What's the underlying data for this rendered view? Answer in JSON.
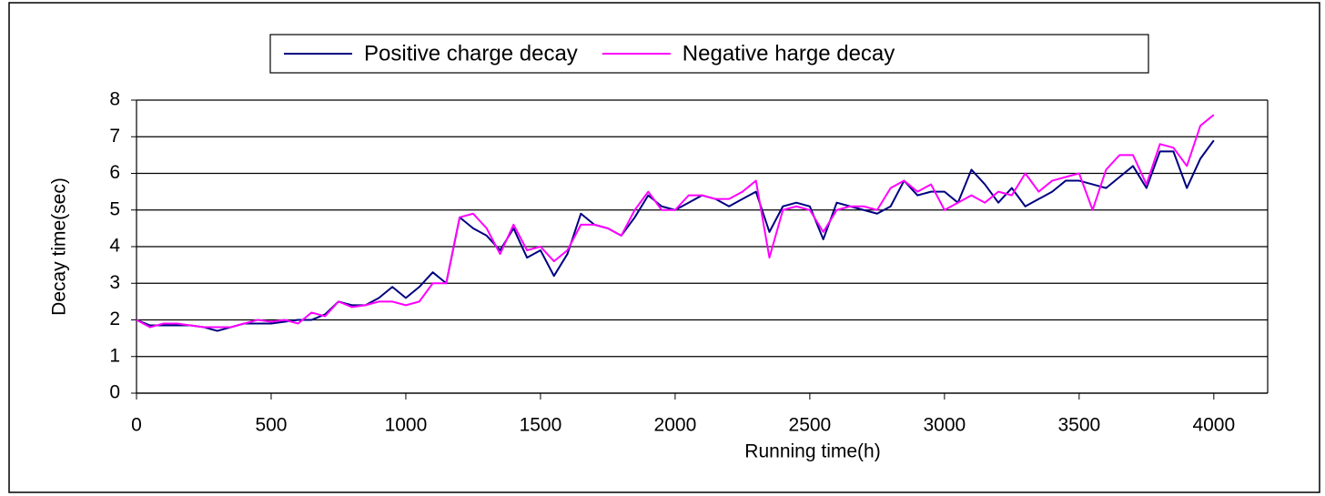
{
  "chart_data": {
    "type": "line",
    "xlabel": "Running time(h)",
    "ylabel": "Decay time(sec)",
    "x": [
      0,
      50,
      100,
      150,
      200,
      250,
      300,
      350,
      400,
      450,
      500,
      550,
      600,
      650,
      700,
      750,
      800,
      850,
      900,
      950,
      1000,
      1050,
      1100,
      1150,
      1200,
      1250,
      1300,
      1350,
      1400,
      1450,
      1500,
      1550,
      1600,
      1650,
      1700,
      1750,
      1800,
      1850,
      1900,
      1950,
      2000,
      2050,
      2100,
      2150,
      2200,
      2250,
      2300,
      2350,
      2400,
      2450,
      2500,
      2550,
      2600,
      2650,
      2700,
      2750,
      2800,
      2850,
      2900,
      2950,
      3000,
      3050,
      3100,
      3150,
      3200,
      3250,
      3300,
      3350,
      3400,
      3450,
      3500,
      3550,
      3600,
      3650,
      3700,
      3750,
      3800,
      3850,
      3900,
      3950,
      4000
    ],
    "series": [
      {
        "name": "Positive charge decay",
        "color": "#000080",
        "values": [
          2.0,
          1.85,
          1.85,
          1.85,
          1.85,
          1.8,
          1.7,
          1.8,
          1.9,
          1.9,
          1.9,
          1.95,
          2.0,
          2.0,
          2.15,
          2.5,
          2.4,
          2.4,
          2.6,
          2.9,
          2.6,
          2.9,
          3.3,
          3.0,
          4.8,
          4.5,
          4.3,
          3.9,
          4.5,
          3.7,
          3.9,
          3.2,
          3.8,
          4.9,
          4.6,
          4.5,
          4.3,
          4.8,
          5.4,
          5.1,
          5.0,
          5.2,
          5.4,
          5.3,
          5.1,
          5.3,
          5.5,
          4.4,
          5.1,
          5.2,
          5.1,
          4.2,
          5.2,
          5.1,
          5.0,
          4.9,
          5.1,
          5.8,
          5.4,
          5.5,
          5.5,
          5.2,
          6.1,
          5.7,
          5.2,
          5.6,
          5.1,
          5.3,
          5.5,
          5.8,
          5.8,
          5.7,
          5.6,
          5.9,
          6.2,
          5.6,
          6.6,
          6.6,
          5.6,
          6.4,
          6.9
        ]
      },
      {
        "name": "Negative harge decay",
        "color": "#ff00ff",
        "values": [
          2.0,
          1.8,
          1.9,
          1.9,
          1.85,
          1.8,
          1.8,
          1.8,
          1.9,
          2.0,
          1.95,
          2.0,
          1.9,
          2.2,
          2.1,
          2.5,
          2.35,
          2.4,
          2.5,
          2.5,
          2.4,
          2.5,
          3.0,
          3.0,
          4.8,
          4.9,
          4.5,
          3.8,
          4.6,
          3.9,
          4.0,
          3.6,
          3.9,
          4.6,
          4.6,
          4.5,
          4.3,
          5.0,
          5.5,
          5.0,
          5.0,
          5.4,
          5.4,
          5.3,
          5.3,
          5.5,
          5.8,
          3.7,
          5.0,
          5.1,
          5.0,
          4.4,
          5.0,
          5.1,
          5.1,
          5.0,
          5.6,
          5.8,
          5.5,
          5.7,
          5.0,
          5.2,
          5.4,
          5.2,
          5.5,
          5.4,
          6.0,
          5.5,
          5.8,
          5.9,
          6.0,
          5.0,
          6.1,
          6.5,
          6.5,
          5.7,
          6.8,
          6.7,
          6.2,
          7.3,
          7.6
        ]
      }
    ],
    "xlim": [
      0,
      4200
    ],
    "xticks": [
      0,
      500,
      1000,
      1500,
      2000,
      2500,
      3000,
      3500,
      4000
    ],
    "ylim": [
      0,
      8
    ],
    "yticks": [
      0,
      1,
      2,
      3,
      4,
      5,
      6,
      7,
      8
    ],
    "grid": true,
    "legend": "top"
  }
}
